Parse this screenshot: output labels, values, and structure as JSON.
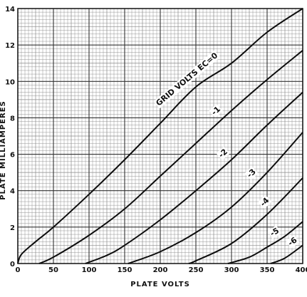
{
  "chart_data": {
    "type": "line",
    "xlabel": "PLATE VOLTS",
    "ylabel": "PLATE MILLIAMPERES",
    "xlim": [
      0,
      400
    ],
    "ylim": [
      0,
      14
    ],
    "x_ticks": [
      0,
      50,
      100,
      150,
      200,
      250,
      300,
      350,
      400
    ],
    "y_ticks": [
      0,
      2,
      4,
      6,
      8,
      10,
      12,
      14
    ],
    "grid": true,
    "series": [
      {
        "name": "GRID VOLTS EC=0",
        "x": [
          0,
          5,
          25,
          50,
          100,
          150,
          200,
          250,
          300,
          350,
          400
        ],
        "values": [
          0,
          0.5,
          1.2,
          2.0,
          3.8,
          5.7,
          7.7,
          9.7,
          11.0,
          12.7,
          14.0
        ]
      },
      {
        "name": "-1",
        "x": [
          30,
          50,
          100,
          150,
          200,
          250,
          300,
          350,
          400
        ],
        "values": [
          0,
          0.35,
          1.55,
          3.0,
          4.8,
          6.6,
          8.4,
          10.1,
          11.7
        ]
      },
      {
        "name": "-2",
        "x": [
          95,
          125,
          150,
          200,
          250,
          300,
          350,
          400
        ],
        "values": [
          0,
          0.45,
          1.0,
          2.4,
          4.0,
          5.7,
          7.6,
          9.4
        ]
      },
      {
        "name": "-3",
        "x": [
          155,
          200,
          250,
          300,
          350,
          400
        ],
        "values": [
          0,
          0.65,
          1.7,
          3.1,
          5.0,
          7.2
        ]
      },
      {
        "name": "-4",
        "x": [
          240,
          250,
          300,
          350,
          400
        ],
        "values": [
          0,
          0.15,
          1.1,
          2.7,
          4.7
        ]
      },
      {
        "name": "-5",
        "x": [
          295,
          325,
          350,
          375,
          400
        ],
        "values": [
          0,
          0.35,
          0.9,
          1.5,
          2.3
        ]
      },
      {
        "name": "-6",
        "x": [
          355,
          375,
          400
        ],
        "values": [
          0,
          0.3,
          1.0
        ]
      }
    ]
  }
}
